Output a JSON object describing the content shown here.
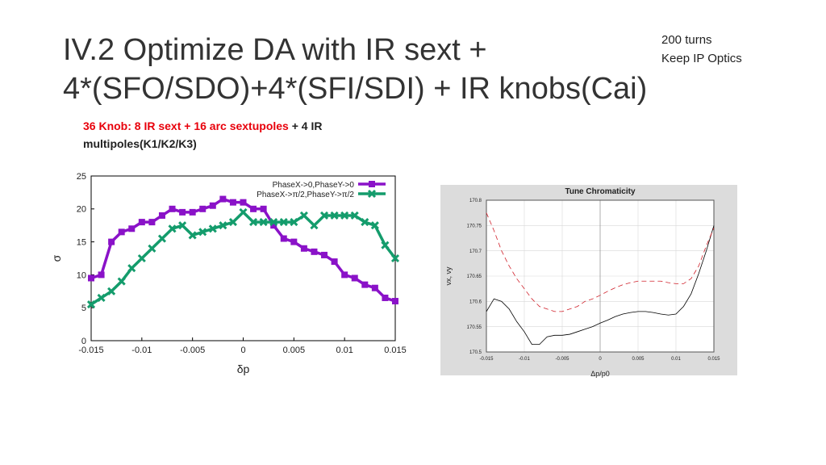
{
  "title": [
    "IV.2 Optimize DA with IR sext +",
    "4*(SFO/SDO)+4*(SFI/SDI) + IR knobs(Cai)"
  ],
  "note": [
    "200 turns",
    "Keep IP Optics"
  ],
  "subtitle": [
    "36 Knob: 8 IR sext + 16 arc sextupoles",
    " + 4 IR multipoles(K1/K2/K3)"
  ],
  "chart_data": [
    {
      "type": "line",
      "xlabel": "δp",
      "ylabel": "σ",
      "x": [
        -0.015,
        -0.014,
        -0.013,
        -0.012,
        -0.011,
        -0.01,
        -0.009,
        -0.008,
        -0.007,
        -0.006,
        -0.005,
        -0.004,
        -0.003,
        -0.002,
        -0.001,
        0,
        0.001,
        0.002,
        0.003,
        0.004,
        0.005,
        0.006,
        0.007,
        0.008,
        0.009,
        0.01,
        0.011,
        0.012,
        0.013,
        0.014,
        0.015
      ],
      "series": [
        {
          "name": "PhaseX->0,PhaseY->0",
          "color": "#8a12c8",
          "marker": "square",
          "values": [
            9.5,
            10,
            15,
            16.5,
            17,
            18,
            18,
            19,
            20,
            19.5,
            19.5,
            20,
            20.5,
            21.5,
            21,
            21,
            20,
            20,
            17.5,
            15.5,
            15,
            14,
            13.5,
            13,
            12,
            10,
            9.5,
            8.5,
            8,
            6.5,
            6
          ]
        },
        {
          "name": "PhaseX->π/2,PhaseY->π/2",
          "color": "#149c6c",
          "marker": "x",
          "values": [
            5.5,
            6.5,
            7.5,
            9,
            11,
            12.5,
            14,
            15.5,
            17,
            17.5,
            16,
            16.5,
            17,
            17.5,
            18,
            19.5,
            18,
            18,
            18,
            18,
            18,
            19,
            17.5,
            19,
            19,
            19,
            19,
            18,
            17.5,
            14.5,
            12.5
          ]
        }
      ],
      "xlim": [
        -0.015,
        0.015
      ],
      "xticks": [
        -0.015,
        -0.01,
        -0.005,
        0,
        0.005,
        0.01,
        0.015
      ],
      "ylim": [
        0,
        25
      ],
      "yticks": [
        0,
        5,
        10,
        15,
        20,
        25
      ],
      "grid": false,
      "legend": "upper right"
    },
    {
      "type": "line",
      "title": "Tune Chromaticity",
      "xlabel": "Δp/p0",
      "ylabel": "νx, νy",
      "x": [
        -0.015,
        -0.014,
        -0.013,
        -0.012,
        -0.011,
        -0.01,
        -0.009,
        -0.008,
        -0.007,
        -0.006,
        -0.005,
        -0.004,
        -0.003,
        -0.002,
        -0.001,
        0,
        0.001,
        0.002,
        0.003,
        0.004,
        0.005,
        0.006,
        0.007,
        0.008,
        0.009,
        0.01,
        0.011,
        0.012,
        0.013,
        0.014,
        0.015
      ],
      "series": [
        {
          "color": "#000000",
          "linestyle": "solid",
          "values": [
            170.58,
            170.605,
            170.6,
            170.585,
            170.56,
            170.54,
            170.515,
            170.515,
            170.53,
            170.533,
            170.533,
            170.535,
            170.54,
            170.545,
            170.55,
            170.557,
            170.563,
            170.57,
            170.575,
            170.578,
            170.58,
            170.58,
            170.578,
            170.575,
            170.573,
            170.575,
            170.59,
            170.615,
            170.655,
            170.7,
            170.75
          ]
        },
        {
          "color": "#d0202a",
          "linestyle": "dashed",
          "values": [
            170.775,
            170.74,
            170.7,
            170.67,
            170.645,
            170.625,
            170.605,
            170.59,
            170.585,
            170.58,
            170.58,
            170.585,
            170.59,
            170.6,
            170.605,
            170.612,
            170.62,
            170.627,
            170.633,
            170.637,
            170.64,
            170.64,
            170.64,
            170.64,
            170.637,
            170.635,
            170.635,
            170.645,
            170.67,
            170.71,
            170.745
          ]
        }
      ],
      "xlim": [
        -0.015,
        0.015
      ],
      "xticks": [
        -0.015,
        -0.01,
        -0.005,
        0,
        0.005,
        0.01,
        0.015
      ],
      "ylim": [
        170.5,
        170.8
      ],
      "yticks": [
        170.5,
        170.55,
        170.6,
        170.65,
        170.7,
        170.75,
        170.8
      ],
      "grid": true
    }
  ]
}
